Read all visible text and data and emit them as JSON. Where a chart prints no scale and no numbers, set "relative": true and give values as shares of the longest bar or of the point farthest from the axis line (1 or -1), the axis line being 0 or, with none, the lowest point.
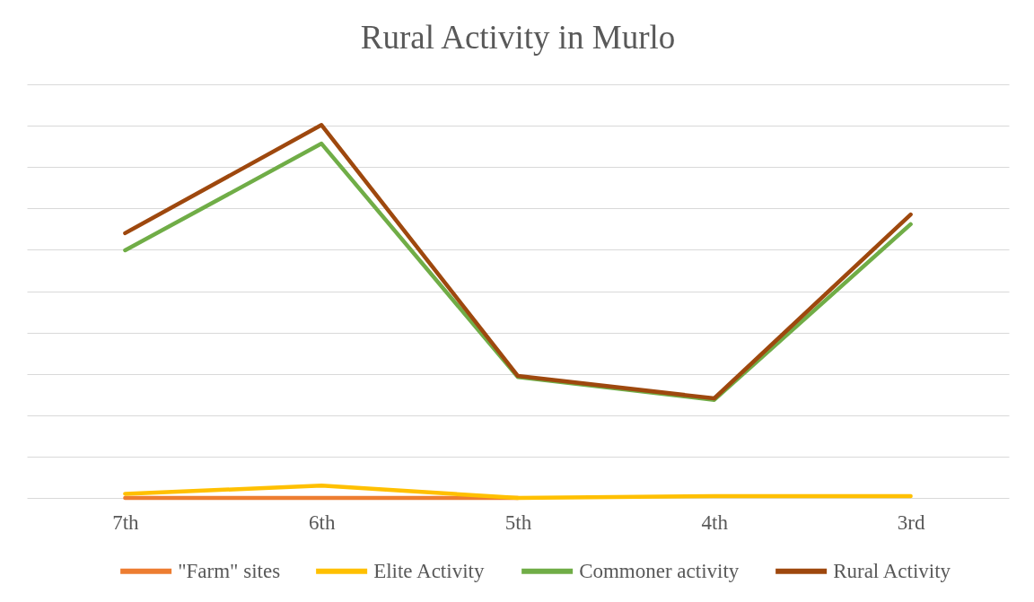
{
  "chart_data": {
    "type": "line",
    "title": "Rural Activity in Murlo",
    "relative": true,
    "categories": [
      "7th",
      "6th",
      "5th",
      "4th",
      "3rd"
    ],
    "series": [
      {
        "name": "\"Farm\" sites",
        "color": "#ed7d31",
        "values": [
          0,
          0,
          0,
          null,
          null
        ]
      },
      {
        "name": "Elite Activity",
        "color": "#ffc000",
        "values": [
          0.011,
          0.033,
          0.0,
          0.005,
          0.005
        ]
      },
      {
        "name": "Commoner activity",
        "color": "#70ad47",
        "values": [
          0.664,
          0.95,
          0.324,
          0.263,
          0.734
        ]
      },
      {
        "name": "Rural Activity",
        "color": "#9e480e",
        "values": [
          0.71,
          1,
          0.327,
          0.267,
          0.76
        ]
      }
    ],
    "grid": "y",
    "legend": "bottom",
    "line_style": "solid"
  }
}
